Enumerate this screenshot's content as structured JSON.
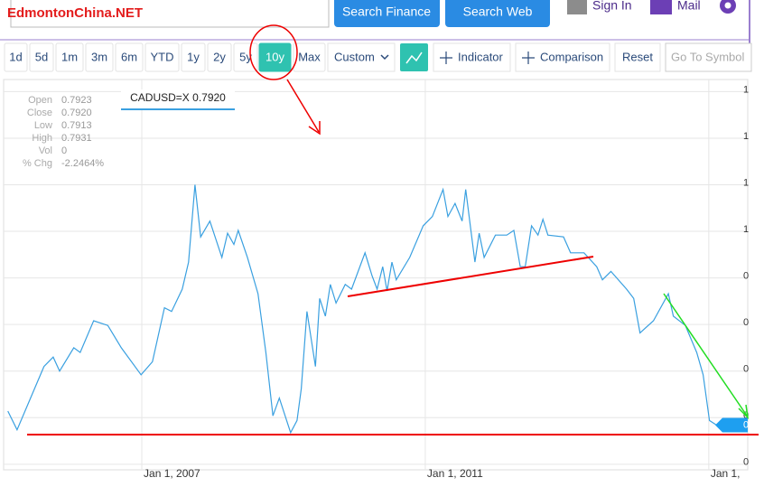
{
  "header": {
    "logo": "EdmontonChina.NET",
    "search_finance": "Search Finance",
    "search_web": "Search Web",
    "sign_in": "Sign In",
    "mail": "Mail"
  },
  "toolbar": {
    "ranges": [
      "1d",
      "5d",
      "1m",
      "3m",
      "6m",
      "YTD",
      "1y",
      "2y",
      "5y",
      "10y",
      "Max"
    ],
    "active_range": "10y",
    "custom": "Custom",
    "indicator": "Indicator",
    "comparison": "Comparison",
    "reset": "Reset",
    "symbol_placeholder": "Go To Symbol"
  },
  "quote_panel": {
    "labels": [
      "Open",
      "Close",
      "Low",
      "High",
      "Vol",
      "% Chg"
    ],
    "values": [
      "0.7923",
      "0.7920",
      "0.7913",
      "0.7931",
      "0",
      "-2.2464%"
    ]
  },
  "tooltip": "CADUSD=X 0.7920",
  "chart_data": {
    "type": "line",
    "series": [
      {
        "name": "CADUSD=X",
        "color": "#3aa0e0",
        "x": [
          2005.11,
          2005.24,
          2005.43,
          2005.62,
          2005.75,
          2005.84,
          2006.04,
          2006.13,
          2006.32,
          2006.52,
          2006.71,
          2006.99,
          2007.15,
          2007.32,
          2007.42,
          2007.57,
          2007.66,
          2007.75,
          2007.83,
          2007.96,
          2008.13,
          2008.21,
          2008.3,
          2008.36,
          2008.49,
          2008.64,
          2008.75,
          2008.85,
          2008.94,
          2009.1,
          2009.19,
          2009.25,
          2009.33,
          2009.45,
          2009.51,
          2009.59,
          2009.66,
          2009.74,
          2009.87,
          2009.96,
          2010.15,
          2010.25,
          2010.32,
          2010.4,
          2010.46,
          2010.53,
          2010.59,
          2010.78,
          2010.97,
          2011.1,
          2011.25,
          2011.32,
          2011.42,
          2011.52,
          2011.57,
          2011.7,
          2011.76,
          2011.83,
          2011.99,
          2012.15,
          2012.25,
          2012.34,
          2012.41,
          2012.5,
          2012.59,
          2012.66,
          2012.73,
          2012.95,
          2013.05,
          2013.24,
          2013.42,
          2013.5,
          2013.62,
          2013.84,
          2013.94,
          2014.03,
          2014.22,
          2014.43,
          2014.5,
          2014.67,
          2014.83,
          2014.92,
          2015.01,
          2015.11
        ],
        "values": [
          0.807,
          0.787,
          0.821,
          0.855,
          0.865,
          0.85,
          0.875,
          0.87,
          0.904,
          0.899,
          0.875,
          0.846,
          0.86,
          0.918,
          0.914,
          0.938,
          0.967,
          1.05,
          0.994,
          1.011,
          0.972,
          0.998,
          0.986,
          1.001,
          0.972,
          0.933,
          0.87,
          0.802,
          0.821,
          0.784,
          0.797,
          0.831,
          0.914,
          0.855,
          0.928,
          0.909,
          0.943,
          0.923,
          0.943,
          0.938,
          0.977,
          0.952,
          0.938,
          0.962,
          0.936,
          0.967,
          0.948,
          0.972,
          1.006,
          1.016,
          1.045,
          1.016,
          1.03,
          1.011,
          1.045,
          0.967,
          0.998,
          0.972,
          0.996,
          0.996,
          1.001,
          0.962,
          0.962,
          1.006,
          0.996,
          1.013,
          0.996,
          0.994,
          0.977,
          0.977,
          0.962,
          0.948,
          0.957,
          0.938,
          0.928,
          0.891,
          0.904,
          0.933,
          0.909,
          0.899,
          0.87,
          0.846,
          0.797,
          0.792
        ]
      }
    ],
    "xlim": [
      2005.05,
      2015.55
    ],
    "xticks": [
      {
        "value": 2007,
        "label": "Jan 1, 2007"
      },
      {
        "value": 2011,
        "label": "Jan 1, 2011"
      },
      {
        "value": 2015,
        "label": "Jan 1,"
      }
    ],
    "ylim": [
      0.744,
      1.163
    ],
    "yticks": [
      {
        "value": 0.75,
        "label": "0"
      },
      {
        "value": 0.8,
        "label": "0"
      },
      {
        "value": 0.85,
        "label": "0"
      },
      {
        "value": 0.9,
        "label": "0"
      },
      {
        "value": 0.95,
        "label": "0"
      },
      {
        "value": 1.0,
        "label": "1"
      },
      {
        "value": 1.05,
        "label": "1"
      },
      {
        "value": 1.1,
        "label": "1"
      },
      {
        "value": 1.15,
        "label": "1"
      }
    ],
    "current_label": "0",
    "grid": true
  }
}
